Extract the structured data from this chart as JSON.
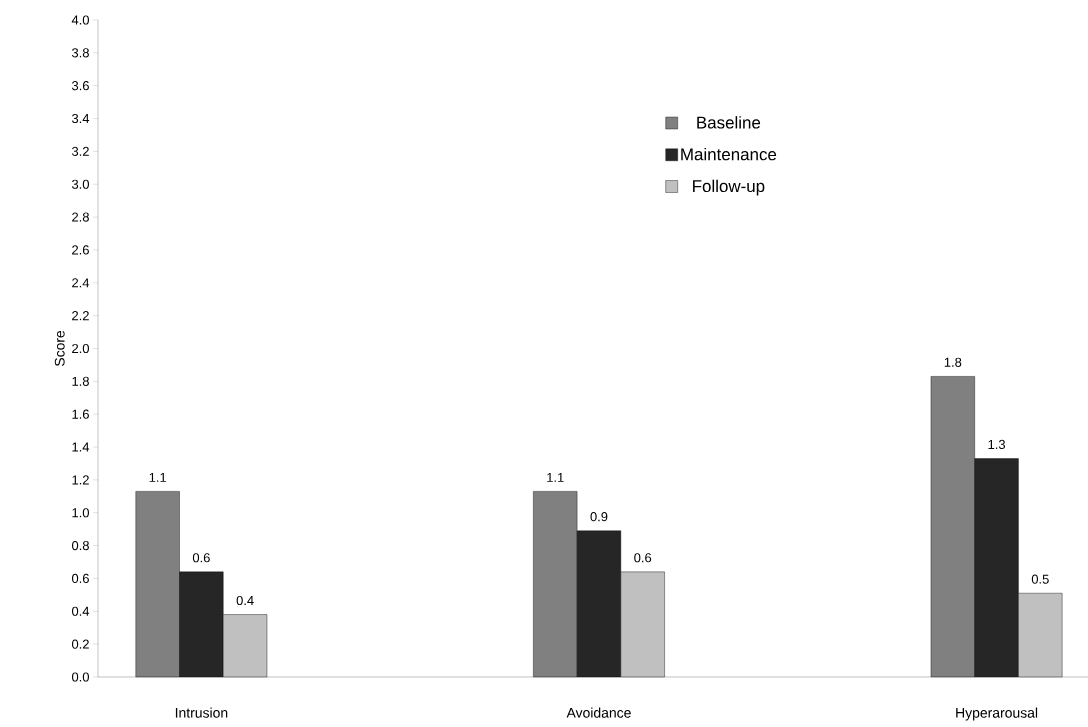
{
  "chart_data": {
    "type": "bar",
    "ylabel": "Score",
    "categories": [
      "Intrusion",
      "Avoidance",
      "Hyperarousal"
    ],
    "series": [
      {
        "name": "Baseline",
        "color": "#808080",
        "values": [
          1.13,
          1.13,
          1.83
        ],
        "value_labels": [
          "1.1",
          "1.1",
          "1.8"
        ]
      },
      {
        "name": "Maintenance",
        "color": "#262626",
        "values": [
          0.64,
          0.89,
          1.33
        ],
        "value_labels": [
          "0.6",
          "0.9",
          "1.3"
        ]
      },
      {
        "name": "Follow-up",
        "color": "#c0c0c0",
        "values": [
          0.38,
          0.64,
          0.51
        ],
        "value_labels": [
          "0.4",
          "0.6",
          "0.5"
        ]
      }
    ],
    "ylim": [
      0,
      4
    ],
    "yticks": [
      {
        "value": 0,
        "label": "0.0"
      },
      {
        "value": 0.2,
        "label": "0.2"
      },
      {
        "value": 0.4,
        "label": "0.4"
      },
      {
        "value": 0.6,
        "label": "0.6"
      },
      {
        "value": 0.8,
        "label": "0.8"
      },
      {
        "value": 1.0,
        "label": "1.0"
      },
      {
        "value": 1.2,
        "label": "1.2"
      },
      {
        "value": 1.4,
        "label": "1.4"
      },
      {
        "value": 1.6,
        "label": "1.6"
      },
      {
        "value": 1.8,
        "label": "1.8"
      },
      {
        "value": 2.0,
        "label": "2.0"
      },
      {
        "value": 2.2,
        "label": "2.2"
      },
      {
        "value": 2.4,
        "label": "2.4"
      },
      {
        "value": 2.6,
        "label": "2.6"
      },
      {
        "value": 2.8,
        "label": "2.8"
      },
      {
        "value": 3.0,
        "label": "3.0"
      },
      {
        "value": 3.2,
        "label": "3.2"
      },
      {
        "value": 3.4,
        "label": "3.4"
      },
      {
        "value": 3.6,
        "label": "3.6"
      },
      {
        "value": 3.8,
        "label": "3.8"
      },
      {
        "value": 4.0,
        "label": "4.0"
      }
    ],
    "grid": false,
    "legend": "top right"
  }
}
